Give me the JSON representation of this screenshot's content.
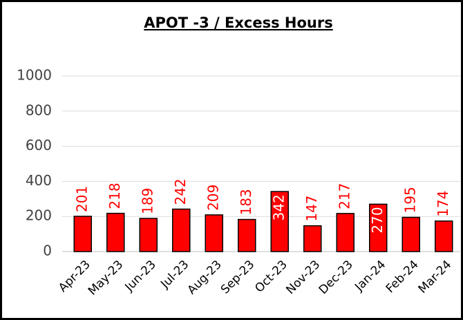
{
  "chart_data": {
    "type": "bar",
    "title": "APOT -3 / Excess Hours",
    "categories": [
      "Apr-23",
      "May-23",
      "Jun-23",
      "Jul-23",
      "Aug-23",
      "Sep-23",
      "Oct-23",
      "Nov-23",
      "Dec-23",
      "Jan-24",
      "Feb-24",
      "Mar-24"
    ],
    "values": [
      201,
      218,
      189,
      242,
      209,
      183,
      342,
      147,
      217,
      270,
      195,
      174
    ],
    "color": "#ff0000",
    "label_color": "#ff0000",
    "ylim": [
      0,
      1000
    ],
    "yticks": [
      0,
      200,
      400,
      600,
      800,
      1000
    ],
    "grid": true
  }
}
